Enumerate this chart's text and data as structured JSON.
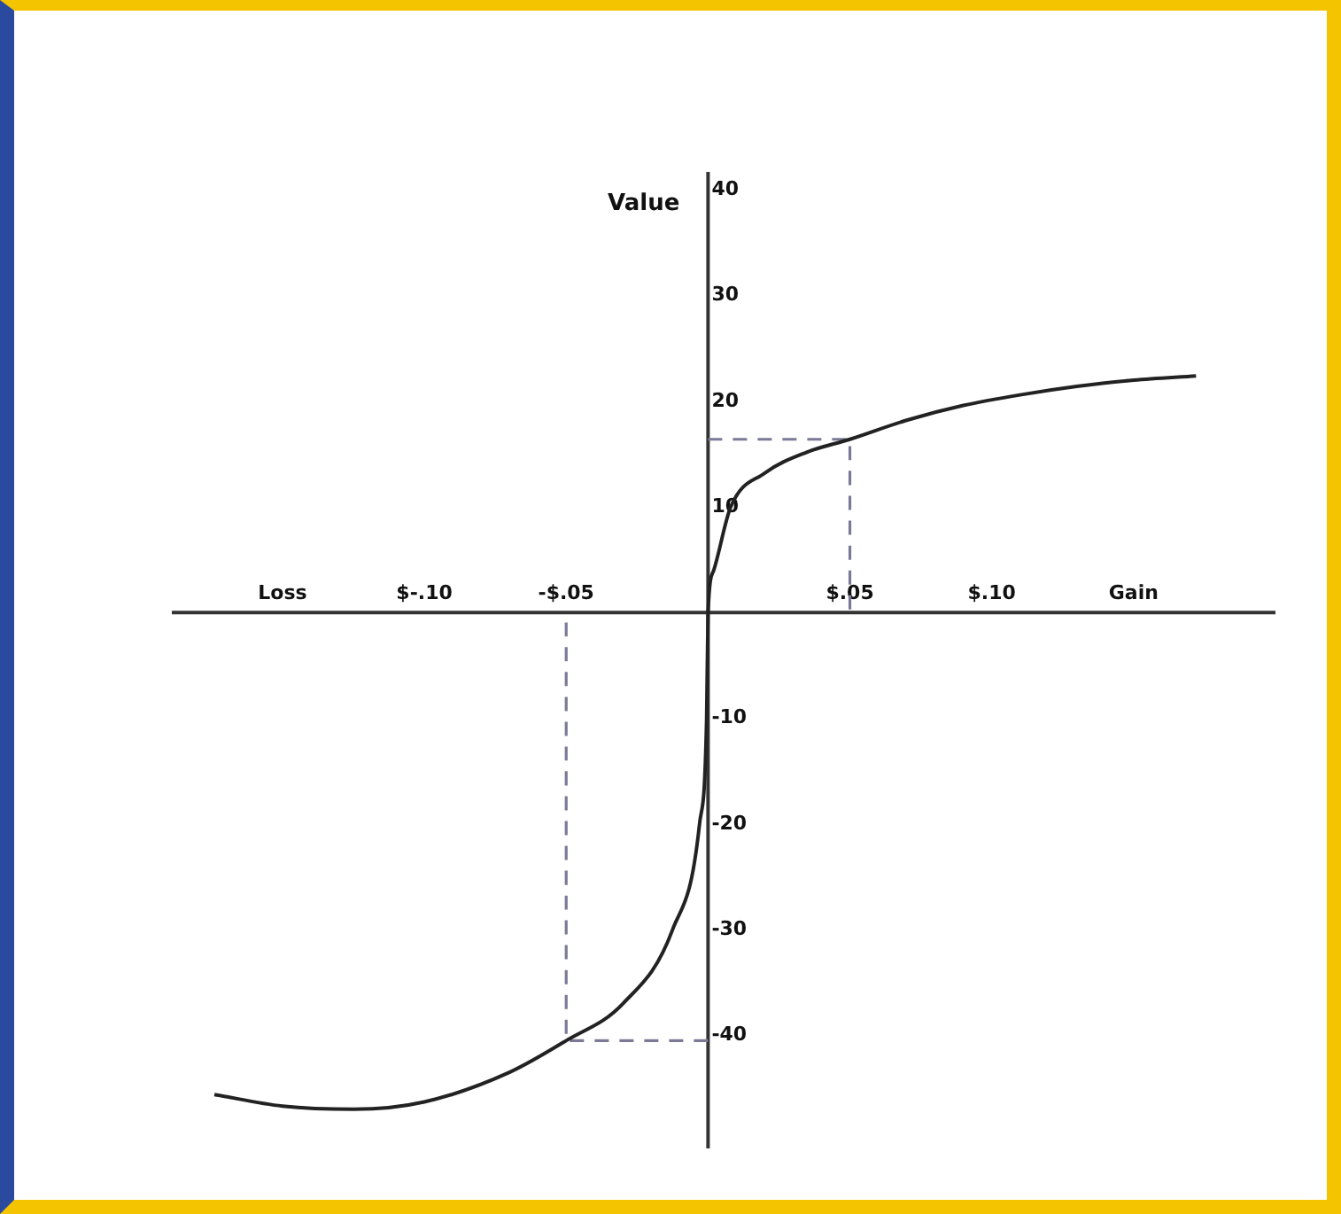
{
  "chart_data": {
    "type": "line",
    "ylabel": "Value",
    "xlim": [
      -0.189,
      0.2
    ],
    "ylim": [
      -50.7,
      41.7
    ],
    "xticks": [
      {
        "value": -0.15,
        "label": "Loss"
      },
      {
        "value": -0.1,
        "label": "$-.10"
      },
      {
        "value": -0.05,
        "label": "-$.05"
      },
      {
        "value": 0.05,
        "label": "$.05"
      },
      {
        "value": 0.1,
        "label": "$.10"
      },
      {
        "value": 0.15,
        "label": "Gain"
      }
    ],
    "yticks": [
      {
        "value": -40,
        "label": "-40"
      },
      {
        "value": -30,
        "label": "-30"
      },
      {
        "value": -20,
        "label": "-20"
      },
      {
        "value": -10,
        "label": "-10"
      },
      10,
      20,
      30,
      40
    ],
    "grid": false,
    "legend": false,
    "marker": "none",
    "series": [
      {
        "color": "#222222",
        "line_style": "solid",
        "x": [
          -0.174,
          -0.15,
          -0.125,
          -0.1,
          -0.07,
          -0.05,
          -0.03,
          -0.0125,
          -0.003,
          -0.0005,
          0,
          0.002,
          0.008,
          0.02,
          0.035,
          0.05,
          0.07,
          0.09,
          0.11,
          0.13,
          0.15,
          0.172
        ],
        "values": [
          -45.6,
          -46.7,
          -47,
          -46.3,
          -43.5,
          -40.5,
          -37,
          -30,
          -20,
          -10,
          0,
          4,
          10,
          13.2,
          15.2,
          16.4,
          18.2,
          19.6,
          20.6,
          21.4,
          22,
          22.4
        ]
      },
      {
        "color": "#7a7a96",
        "line_style": "dashed",
        "x": [
          0,
          0.05,
          0.05
        ],
        "values": [
          16.4,
          16.4,
          0
        ]
      },
      {
        "color": "#7a7a96",
        "line_style": "dashed",
        "x": [
          0,
          -0.05,
          -0.05
        ],
        "values": [
          -40.5,
          -40.5,
          0
        ]
      }
    ]
  }
}
